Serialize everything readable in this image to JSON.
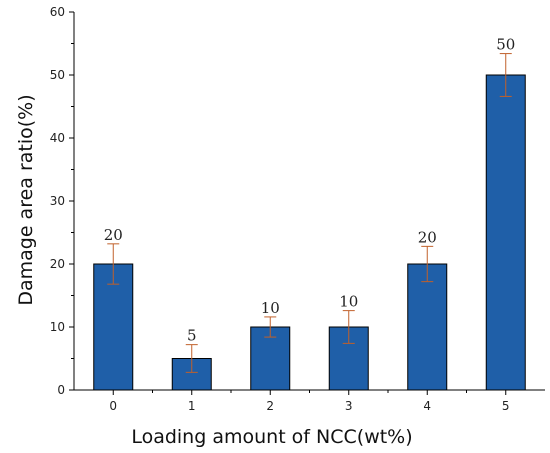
{
  "chart_data": {
    "type": "bar",
    "categories": [
      "0",
      "1",
      "2",
      "3",
      "4",
      "5"
    ],
    "values": [
      20,
      5,
      10,
      10,
      20,
      50
    ],
    "errors": [
      3.2,
      2.2,
      1.6,
      2.6,
      2.8,
      3.4
    ],
    "data_labels": [
      "20",
      "5",
      "10",
      "10",
      "20",
      "50"
    ],
    "title": "",
    "xlabel": "Loading amount of NCC(wt%)",
    "ylabel": "Damage area ratio(%)",
    "ylim": [
      0,
      60
    ],
    "yticks": [
      0,
      10,
      20,
      30,
      40,
      50,
      60
    ],
    "grid": false,
    "bar_color": "#1f5fa8",
    "error_color": "#c0602a"
  }
}
